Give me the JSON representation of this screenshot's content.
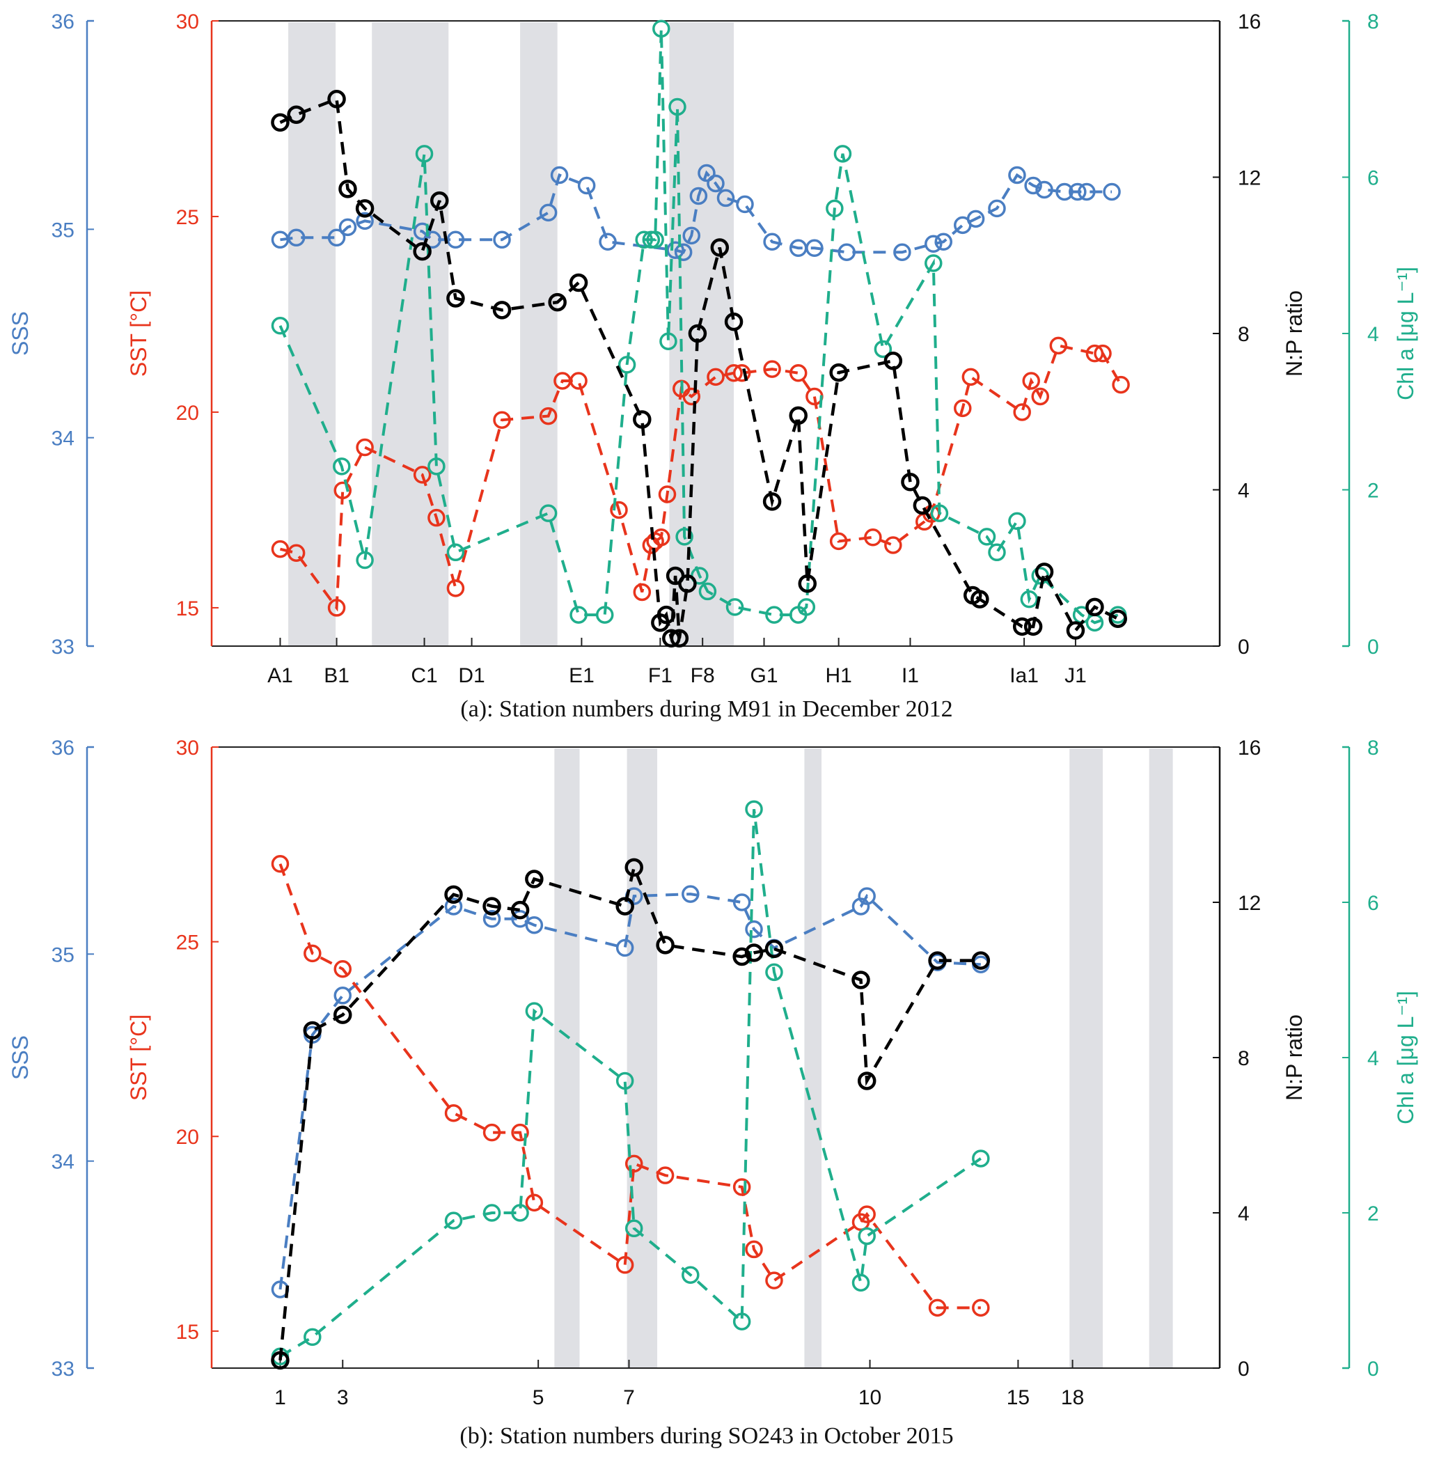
{
  "colors": {
    "sss": "#4a7ec2",
    "sst": "#e8341c",
    "np": "#000000",
    "chl": "#1fae8c",
    "shade": "#dfe0e4"
  },
  "chart_data": [
    {
      "type": "line",
      "panel": "a",
      "caption": "(a): Station numbers during M91 in December 2012",
      "xlabel": "Station numbers",
      "x_tick_labels": [
        "A1",
        "B1",
        "C1",
        "D1",
        "E1",
        "F1",
        "F8",
        "G1",
        "H1",
        "I1",
        "Ia1",
        "J1"
      ],
      "x_tick_positions": [
        6.8,
        12.4,
        21.1,
        25.8,
        36.7,
        44.5,
        48.7,
        54.8,
        62.2,
        69.3,
        80.6,
        85.7
      ],
      "x_range": [
        0,
        100
      ],
      "shaded_x_ranges": [
        [
          7.6,
          12.3
        ],
        [
          15.9,
          23.5
        ],
        [
          30.6,
          34.3
        ],
        [
          45.4,
          51.8
        ]
      ],
      "axes": {
        "sss": {
          "label": "SSS",
          "range": [
            33,
            36
          ],
          "ticks": [
            33,
            34,
            35,
            36
          ],
          "side": "left-outer"
        },
        "sst": {
          "label": "SST [°C]",
          "range": [
            14.02,
            30
          ],
          "ticks": [
            15,
            20,
            25,
            30
          ],
          "side": "left-inner"
        },
        "np": {
          "label": "N:P ratio",
          "range": [
            0,
            16
          ],
          "ticks": [
            0,
            4,
            8,
            12,
            16
          ],
          "side": "right-inner"
        },
        "chl": {
          "label": "Chl a [μg L⁻¹]",
          "range": [
            0,
            8
          ],
          "ticks": [
            0,
            2,
            4,
            6,
            8
          ],
          "side": "right-outer"
        }
      },
      "series": [
        {
          "name": "SSS",
          "axis": "sss",
          "color_key": "sss",
          "x": [
            6.8,
            8.4,
            12.4,
            13.5,
            15.2,
            20.9,
            21.9,
            24.2,
            28.8,
            33.4,
            34.5,
            37.2,
            39.3,
            46.0,
            46.8,
            47.6,
            48.3,
            49.1,
            50.0,
            51.0,
            52.9,
            55.6,
            58.2,
            59.8,
            63.0,
            68.5,
            71.6,
            72.6,
            74.5,
            75.8,
            77.9,
            79.9,
            81.5,
            82.6,
            84.6,
            85.9,
            86.8,
            89.3
          ],
          "values": [
            34.95,
            34.96,
            34.96,
            35.01,
            35.04,
            34.99,
            34.95,
            34.95,
            34.95,
            35.08,
            35.26,
            35.21,
            34.94,
            34.9,
            34.89,
            34.97,
            35.16,
            35.27,
            35.22,
            35.15,
            35.12,
            34.94,
            34.91,
            34.91,
            34.89,
            34.89,
            34.93,
            34.94,
            35.02,
            35.05,
            35.1,
            35.26,
            35.21,
            35.19,
            35.18,
            35.18,
            35.18,
            35.18
          ]
        },
        {
          "name": "SST",
          "axis": "sst",
          "color_key": "sst",
          "x": [
            6.8,
            8.4,
            12.4,
            13.0,
            15.2,
            20.9,
            22.3,
            24.2,
            28.8,
            33.4,
            34.8,
            36.4,
            40.4,
            42.7,
            43.6,
            44.0,
            44.6,
            45.2,
            46.6,
            47.6,
            50.0,
            51.8,
            52.6,
            55.6,
            58.2,
            59.8,
            62.2,
            65.6,
            67.6,
            70.7,
            71.4,
            74.5,
            75.3,
            80.4,
            81.3,
            82.2,
            84.0,
            87.6,
            88.4,
            90.2
          ],
          "values": [
            16.5,
            16.4,
            15.0,
            18.0,
            19.1,
            18.4,
            17.3,
            15.5,
            19.8,
            19.9,
            20.8,
            20.8,
            17.5,
            15.4,
            16.6,
            16.7,
            16.8,
            17.9,
            20.6,
            20.4,
            20.9,
            21.0,
            21.0,
            21.1,
            21.0,
            20.4,
            16.7,
            16.8,
            16.6,
            17.2,
            17.4,
            20.1,
            20.9,
            20.0,
            20.8,
            20.4,
            21.7,
            21.5,
            21.5,
            20.7
          ]
        },
        {
          "name": "N:P ratio",
          "axis": "np",
          "color_key": "np",
          "x": [
            6.8,
            8.4,
            12.4,
            13.5,
            15.2,
            20.9,
            22.6,
            24.2,
            28.8,
            34.3,
            36.4,
            42.7,
            44.5,
            45.1,
            45.6,
            46.0,
            46.4,
            47.2,
            48.2,
            50.4,
            51.8,
            55.6,
            58.2,
            59.1,
            62.2,
            67.6,
            69.3,
            70.5,
            75.5,
            76.2,
            80.4,
            81.5,
            82.6,
            85.7,
            87.6,
            89.9
          ],
          "values": [
            13.4,
            13.6,
            14.0,
            11.7,
            11.2,
            10.1,
            11.4,
            8.9,
            8.6,
            8.8,
            9.3,
            5.8,
            0.6,
            0.8,
            0.2,
            1.8,
            0.2,
            1.6,
            8.0,
            10.2,
            8.3,
            3.7,
            5.9,
            1.6,
            7.0,
            7.3,
            4.2,
            3.6,
            1.3,
            1.2,
            0.5,
            0.5,
            1.9,
            0.4,
            1.0,
            0.7
          ]
        },
        {
          "name": "Chl a",
          "axis": "chl",
          "color_key": "chl",
          "x": [
            6.8,
            12.9,
            15.2,
            21.1,
            22.3,
            24.2,
            33.4,
            36.4,
            39.0,
            41.2,
            42.9,
            43.6,
            44.0,
            44.6,
            45.3,
            46.2,
            46.9,
            48.4,
            49.2,
            51.9,
            55.8,
            58.2,
            59.0,
            61.8,
            62.6,
            66.6,
            71.6,
            72.2,
            76.9,
            77.9,
            79.9,
            81.1,
            82.2,
            86.3,
            87.6,
            89.9
          ],
          "values": [
            4.1,
            2.3,
            1.1,
            6.3,
            2.3,
            1.2,
            1.7,
            0.4,
            0.4,
            3.6,
            5.2,
            5.2,
            5.2,
            7.9,
            3.9,
            6.9,
            1.4,
            0.9,
            0.7,
            0.5,
            0.4,
            0.4,
            0.5,
            5.6,
            6.3,
            3.8,
            4.9,
            1.7,
            1.4,
            1.2,
            1.6,
            0.6,
            0.9,
            0.4,
            0.3,
            0.4
          ]
        }
      ]
    },
    {
      "type": "line",
      "panel": "b",
      "caption": "(b): Station numbers during SO243 in October 2015",
      "xlabel": "Station numbers",
      "x_tick_labels": [
        "1",
        "3",
        "5",
        "7",
        "10",
        "15",
        "18"
      ],
      "x_tick_positions": [
        6.8,
        13.0,
        32.4,
        41.4,
        65.3,
        80.0,
        85.4
      ],
      "x_range": [
        0,
        100
      ],
      "shaded_x_ranges": [
        [
          34.0,
          36.5
        ],
        [
          41.2,
          44.2
        ],
        [
          58.8,
          60.5
        ],
        [
          85.1,
          88.4
        ],
        [
          93.0,
          93.0
        ]
      ],
      "axes": {
        "sss": {
          "label": "SSS",
          "range": [
            33,
            36
          ],
          "ticks": [
            33,
            34,
            35,
            36
          ],
          "side": "left-outer"
        },
        "sst": {
          "label": "SST [°C]",
          "range": [
            14.05,
            30
          ],
          "ticks": [
            15,
            20,
            25,
            30
          ],
          "side": "left-inner"
        },
        "np": {
          "label": "N:P ratio",
          "range": [
            0,
            16
          ],
          "ticks": [
            0,
            4,
            8,
            12,
            16
          ],
          "side": "right-inner"
        },
        "chl": {
          "label": "Chl a [μg L⁻¹]",
          "range": [
            0,
            8
          ],
          "ticks": [
            0,
            2,
            4,
            6,
            8
          ],
          "side": "right-outer"
        }
      },
      "series": [
        {
          "name": "SSS",
          "axis": "sss",
          "color_key": "sss",
          "x": [
            6.8,
            10.0,
            13.0,
            24.0,
            27.8,
            30.6,
            32.0,
            41.0,
            41.9,
            47.5,
            52.6,
            53.8,
            55.8,
            64.4,
            65.0,
            72.0,
            76.3
          ],
          "values": [
            33.38,
            34.61,
            34.8,
            35.23,
            35.17,
            35.17,
            35.14,
            35.03,
            35.28,
            35.29,
            35.25,
            35.12,
            35.03,
            35.23,
            35.28,
            34.96,
            34.95
          ]
        },
        {
          "name": "SST",
          "axis": "sst",
          "color_key": "sst",
          "x": [
            6.8,
            10.0,
            13.0,
            24.0,
            27.8,
            30.6,
            32.0,
            41.0,
            41.9,
            45.0,
            52.6,
            53.8,
            55.8,
            64.4,
            65.0,
            72.0,
            76.3
          ],
          "values": [
            27.0,
            24.7,
            24.3,
            20.6,
            20.1,
            20.1,
            18.3,
            16.7,
            19.3,
            19.0,
            18.7,
            17.1,
            16.3,
            17.8,
            18.0,
            15.6,
            15.6
          ]
        },
        {
          "name": "N:P ratio",
          "axis": "np",
          "color_key": "np",
          "x": [
            6.8,
            10.0,
            13.0,
            24.0,
            27.8,
            30.6,
            32.0,
            41.0,
            41.9,
            45.0,
            52.6,
            53.8,
            55.8,
            64.4,
            65.0,
            72.0,
            76.3
          ],
          "values": [
            0.2,
            8.7,
            9.1,
            12.2,
            11.9,
            11.8,
            12.6,
            11.9,
            12.9,
            10.9,
            10.6,
            10.7,
            10.8,
            10.0,
            7.4,
            10.5,
            10.5
          ]
        },
        {
          "name": "Chl a",
          "axis": "chl",
          "color_key": "chl",
          "x": [
            6.8,
            10.0,
            24.0,
            27.8,
            30.6,
            32.0,
            41.0,
            41.9,
            47.5,
            52.6,
            53.8,
            55.8,
            64.4,
            65.0,
            76.3
          ],
          "values": [
            0.15,
            0.4,
            1.9,
            2.0,
            2.0,
            4.6,
            3.7,
            1.8,
            1.2,
            0.6,
            7.2,
            5.1,
            1.1,
            1.7,
            2.7
          ]
        }
      ]
    }
  ]
}
